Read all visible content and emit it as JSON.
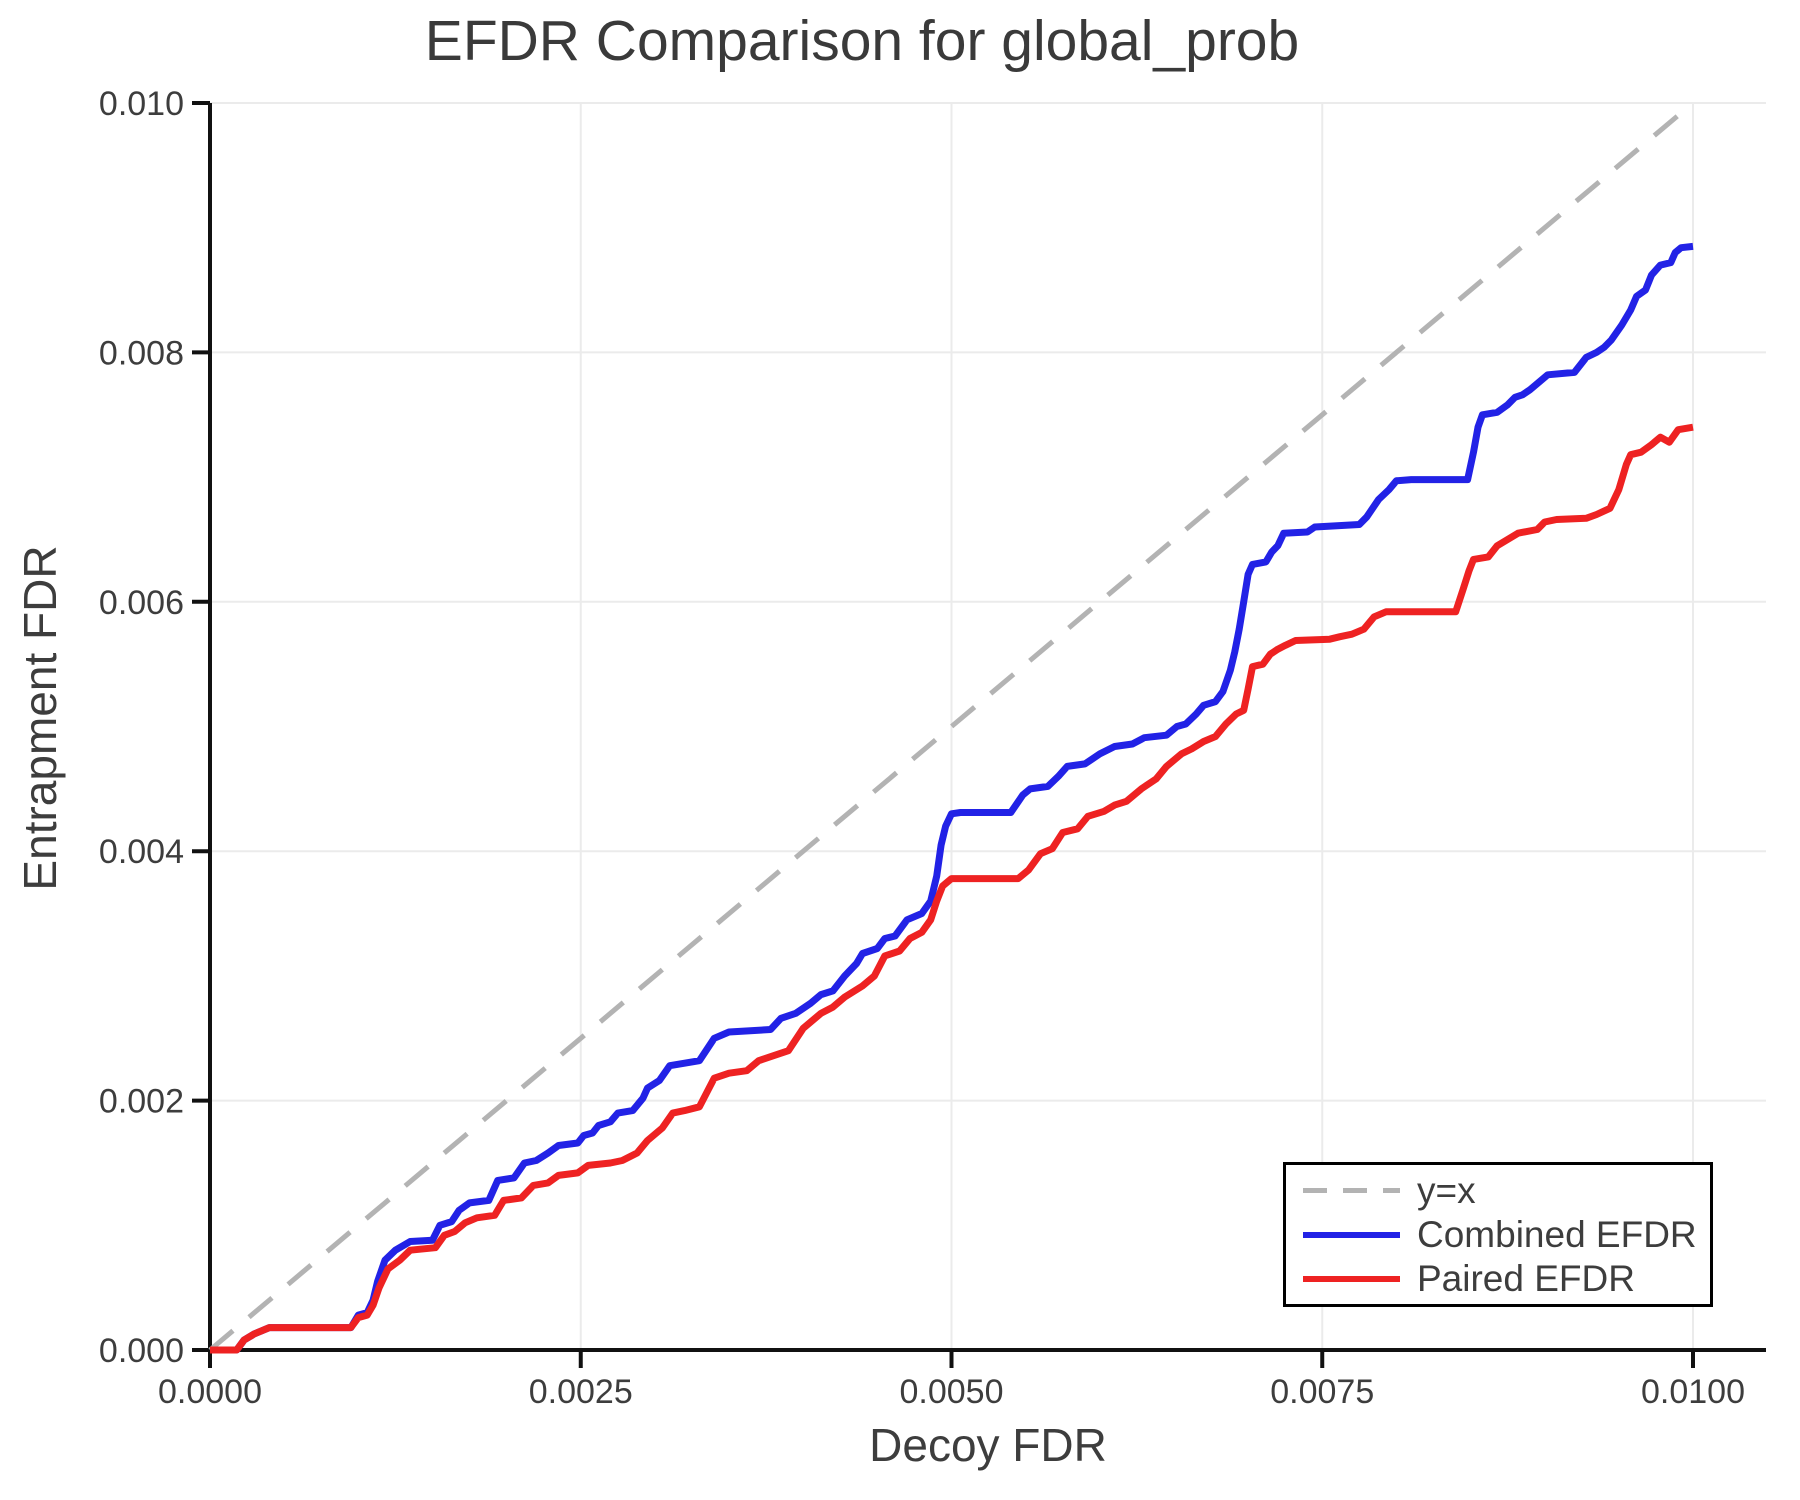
{
  "figure": {
    "background": "#ffffff",
    "text_color": "#3d3d3d",
    "axis_color": "#111111",
    "grid_color": "#ebebeb"
  },
  "chart_data": {
    "type": "line",
    "title": "EFDR Comparison for global_prob",
    "xlabel": "Decoy FDR",
    "ylabel": "Entrapment FDR",
    "xlim": [
      0,
      0.0105
    ],
    "ylim": [
      0,
      0.01
    ],
    "grid": true,
    "x_ticks": {
      "values": [
        0,
        0.0025,
        0.005,
        0.0075,
        0.01
      ],
      "labels": [
        "0.0000",
        "0.0025",
        "0.0050",
        "0.0075",
        "0.0100"
      ]
    },
    "y_ticks": {
      "values": [
        0,
        0.002,
        0.004,
        0.006,
        0.008,
        0.01
      ],
      "labels": [
        "0.000",
        "0.002",
        "0.004",
        "0.006",
        "0.008",
        "0.010"
      ]
    },
    "legend": {
      "position": "bottom-right",
      "items": [
        {
          "label": "y=x",
          "color": "#b3b3b3",
          "style": "dashed"
        },
        {
          "label": "Combined EFDR",
          "color": "#2222e6",
          "style": "solid"
        },
        {
          "label": "Paired EFDR",
          "color": "#ee2222",
          "style": "solid"
        }
      ]
    },
    "series": [
      {
        "name": "y=x",
        "style": "dashed",
        "color": "#b3b3b3",
        "width": 5,
        "points": [
          [
            0,
            0
          ],
          [
            0.01,
            0.01
          ]
        ]
      },
      {
        "name": "Combined EFDR",
        "style": "solid",
        "color": "#2222e6",
        "width": 7,
        "points": [
          [
            0.0,
            0.0
          ],
          [
            0.00018,
            0.0
          ],
          [
            0.00023,
            8e-05
          ],
          [
            0.0003,
            0.00013
          ],
          [
            0.0004,
            0.00018
          ],
          [
            0.00095,
            0.00018
          ],
          [
            0.001,
            0.00028
          ],
          [
            0.00106,
            0.0003
          ],
          [
            0.0011,
            0.0004
          ],
          [
            0.00113,
            0.00055
          ],
          [
            0.00118,
            0.00072
          ],
          [
            0.00125,
            0.0008
          ],
          [
            0.00135,
            0.00087
          ],
          [
            0.0015,
            0.00088
          ],
          [
            0.00155,
            0.001
          ],
          [
            0.00163,
            0.00103
          ],
          [
            0.00168,
            0.00112
          ],
          [
            0.00175,
            0.00118
          ],
          [
            0.00188,
            0.0012
          ],
          [
            0.00194,
            0.00136
          ],
          [
            0.00205,
            0.00138
          ],
          [
            0.00212,
            0.0015
          ],
          [
            0.0022,
            0.00152
          ],
          [
            0.00228,
            0.00158
          ],
          [
            0.00235,
            0.00164
          ],
          [
            0.00248,
            0.00166
          ],
          [
            0.00252,
            0.00172
          ],
          [
            0.00258,
            0.00174
          ],
          [
            0.00262,
            0.0018
          ],
          [
            0.0027,
            0.00183
          ],
          [
            0.00275,
            0.0019
          ],
          [
            0.00285,
            0.00192
          ],
          [
            0.00292,
            0.00202
          ],
          [
            0.00295,
            0.0021
          ],
          [
            0.00303,
            0.00216
          ],
          [
            0.0031,
            0.00228
          ],
          [
            0.0032,
            0.0023
          ],
          [
            0.0033,
            0.00232
          ],
          [
            0.0034,
            0.0025
          ],
          [
            0.0035,
            0.00255
          ],
          [
            0.00378,
            0.00257
          ],
          [
            0.00385,
            0.00266
          ],
          [
            0.00395,
            0.0027
          ],
          [
            0.00405,
            0.00278
          ],
          [
            0.00412,
            0.00285
          ],
          [
            0.0042,
            0.00288
          ],
          [
            0.00428,
            0.003
          ],
          [
            0.00436,
            0.0031
          ],
          [
            0.0044,
            0.00318
          ],
          [
            0.0045,
            0.00322
          ],
          [
            0.00455,
            0.0033
          ],
          [
            0.00462,
            0.00332
          ],
          [
            0.0047,
            0.00345
          ],
          [
            0.0048,
            0.0035
          ],
          [
            0.00486,
            0.0036
          ],
          [
            0.0049,
            0.0038
          ],
          [
            0.00493,
            0.00405
          ],
          [
            0.00496,
            0.0042
          ],
          [
            0.005,
            0.0043
          ],
          [
            0.00506,
            0.00431
          ],
          [
            0.0054,
            0.00431
          ],
          [
            0.00548,
            0.00445
          ],
          [
            0.00553,
            0.0045
          ],
          [
            0.00565,
            0.00452
          ],
          [
            0.00572,
            0.0046
          ],
          [
            0.00578,
            0.00468
          ],
          [
            0.0059,
            0.0047
          ],
          [
            0.006,
            0.00478
          ],
          [
            0.0061,
            0.00484
          ],
          [
            0.00622,
            0.00486
          ],
          [
            0.0063,
            0.00491
          ],
          [
            0.00645,
            0.00493
          ],
          [
            0.00652,
            0.005
          ],
          [
            0.00658,
            0.00502
          ],
          [
            0.00665,
            0.0051
          ],
          [
            0.0067,
            0.00517
          ],
          [
            0.00678,
            0.0052
          ],
          [
            0.00683,
            0.00528
          ],
          [
            0.00688,
            0.00545
          ],
          [
            0.00691,
            0.0056
          ],
          [
            0.00694,
            0.00578
          ],
          [
            0.00697,
            0.006
          ],
          [
            0.007,
            0.00622
          ],
          [
            0.00703,
            0.0063
          ],
          [
            0.00712,
            0.00632
          ],
          [
            0.00716,
            0.0064
          ],
          [
            0.0072,
            0.00645
          ],
          [
            0.00724,
            0.00655
          ],
          [
            0.0074,
            0.00656
          ],
          [
            0.00745,
            0.0066
          ],
          [
            0.00775,
            0.00662
          ],
          [
            0.0078,
            0.00668
          ],
          [
            0.00788,
            0.00682
          ],
          [
            0.00795,
            0.0069
          ],
          [
            0.008,
            0.00697
          ],
          [
            0.0081,
            0.00698
          ],
          [
            0.00848,
            0.00698
          ],
          [
            0.00852,
            0.0072
          ],
          [
            0.00855,
            0.0074
          ],
          [
            0.00858,
            0.0075
          ],
          [
            0.00868,
            0.00752
          ],
          [
            0.00875,
            0.00758
          ],
          [
            0.0088,
            0.00764
          ],
          [
            0.00885,
            0.00766
          ],
          [
            0.0089,
            0.0077
          ],
          [
            0.00896,
            0.00776
          ],
          [
            0.00902,
            0.00782
          ],
          [
            0.0092,
            0.00784
          ],
          [
            0.00928,
            0.00796
          ],
          [
            0.00935,
            0.008
          ],
          [
            0.0094,
            0.00804
          ],
          [
            0.00945,
            0.0081
          ],
          [
            0.00952,
            0.00822
          ],
          [
            0.00958,
            0.00834
          ],
          [
            0.00962,
            0.00845
          ],
          [
            0.00968,
            0.0085
          ],
          [
            0.00972,
            0.00862
          ],
          [
            0.00978,
            0.0087
          ],
          [
            0.00985,
            0.00872
          ],
          [
            0.00988,
            0.0088
          ],
          [
            0.00992,
            0.00884
          ],
          [
            0.01,
            0.00885
          ]
        ]
      },
      {
        "name": "Paired EFDR",
        "style": "solid",
        "color": "#ee2222",
        "width": 7,
        "points": [
          [
            0.0,
            0.0
          ],
          [
            0.00018,
            0.0
          ],
          [
            0.00023,
            8e-05
          ],
          [
            0.0003,
            0.00013
          ],
          [
            0.0004,
            0.00018
          ],
          [
            0.00095,
            0.00018
          ],
          [
            0.001,
            0.00026
          ],
          [
            0.00106,
            0.00028
          ],
          [
            0.0011,
            0.00036
          ],
          [
            0.00114,
            0.0005
          ],
          [
            0.0012,
            0.00065
          ],
          [
            0.00128,
            0.00072
          ],
          [
            0.00135,
            0.0008
          ],
          [
            0.00152,
            0.00082
          ],
          [
            0.00158,
            0.00092
          ],
          [
            0.00165,
            0.00095
          ],
          [
            0.00172,
            0.00102
          ],
          [
            0.0018,
            0.00106
          ],
          [
            0.00192,
            0.00108
          ],
          [
            0.00198,
            0.0012
          ],
          [
            0.0021,
            0.00122
          ],
          [
            0.00218,
            0.00132
          ],
          [
            0.00228,
            0.00134
          ],
          [
            0.00235,
            0.0014
          ],
          [
            0.00248,
            0.00142
          ],
          [
            0.00255,
            0.00148
          ],
          [
            0.0027,
            0.0015
          ],
          [
            0.00278,
            0.00152
          ],
          [
            0.00288,
            0.00158
          ],
          [
            0.00295,
            0.00168
          ],
          [
            0.00305,
            0.00178
          ],
          [
            0.00312,
            0.0019
          ],
          [
            0.0032,
            0.00192
          ],
          [
            0.0033,
            0.00195
          ],
          [
            0.0034,
            0.00218
          ],
          [
            0.0035,
            0.00222
          ],
          [
            0.00362,
            0.00224
          ],
          [
            0.0037,
            0.00232
          ],
          [
            0.0038,
            0.00236
          ],
          [
            0.0039,
            0.0024
          ],
          [
            0.004,
            0.00258
          ],
          [
            0.00412,
            0.0027
          ],
          [
            0.0042,
            0.00275
          ],
          [
            0.00428,
            0.00283
          ],
          [
            0.0044,
            0.00292
          ],
          [
            0.00448,
            0.003
          ],
          [
            0.00455,
            0.00316
          ],
          [
            0.00465,
            0.0032
          ],
          [
            0.00472,
            0.0033
          ],
          [
            0.0048,
            0.00335
          ],
          [
            0.00486,
            0.00345
          ],
          [
            0.0049,
            0.0036
          ],
          [
            0.00494,
            0.00372
          ],
          [
            0.005,
            0.00378
          ],
          [
            0.00545,
            0.00378
          ],
          [
            0.00552,
            0.00385
          ],
          [
            0.0056,
            0.00398
          ],
          [
            0.00568,
            0.00402
          ],
          [
            0.00575,
            0.00415
          ],
          [
            0.00585,
            0.00418
          ],
          [
            0.00592,
            0.00428
          ],
          [
            0.00603,
            0.00432
          ],
          [
            0.0061,
            0.00437
          ],
          [
            0.00618,
            0.0044
          ],
          [
            0.00628,
            0.0045
          ],
          [
            0.00638,
            0.00458
          ],
          [
            0.00645,
            0.00468
          ],
          [
            0.00655,
            0.00478
          ],
          [
            0.00662,
            0.00482
          ],
          [
            0.0067,
            0.00488
          ],
          [
            0.00678,
            0.00492
          ],
          [
            0.00685,
            0.00502
          ],
          [
            0.00692,
            0.0051
          ],
          [
            0.00697,
            0.00513
          ],
          [
            0.007,
            0.0053
          ],
          [
            0.00703,
            0.00548
          ],
          [
            0.0071,
            0.0055
          ],
          [
            0.00715,
            0.00558
          ],
          [
            0.0072,
            0.00562
          ],
          [
            0.00725,
            0.00565
          ],
          [
            0.00732,
            0.00569
          ],
          [
            0.00755,
            0.0057
          ],
          [
            0.00762,
            0.00572
          ],
          [
            0.0077,
            0.00574
          ],
          [
            0.00778,
            0.00578
          ],
          [
            0.00785,
            0.00588
          ],
          [
            0.00793,
            0.00592
          ],
          [
            0.0084,
            0.00592
          ],
          [
            0.00845,
            0.0061
          ],
          [
            0.00849,
            0.00625
          ],
          [
            0.00852,
            0.00634
          ],
          [
            0.00862,
            0.00636
          ],
          [
            0.00868,
            0.00645
          ],
          [
            0.00875,
            0.0065
          ],
          [
            0.00882,
            0.00655
          ],
          [
            0.00895,
            0.00658
          ],
          [
            0.009,
            0.00664
          ],
          [
            0.00908,
            0.00666
          ],
          [
            0.00928,
            0.00667
          ],
          [
            0.00935,
            0.0067
          ],
          [
            0.00944,
            0.00675
          ],
          [
            0.0095,
            0.0069
          ],
          [
            0.00955,
            0.0071
          ],
          [
            0.00958,
            0.00718
          ],
          [
            0.00965,
            0.0072
          ],
          [
            0.00972,
            0.00726
          ],
          [
            0.00978,
            0.00732
          ],
          [
            0.00984,
            0.00728
          ],
          [
            0.0099,
            0.00738
          ],
          [
            0.01,
            0.0074
          ]
        ]
      }
    ]
  }
}
